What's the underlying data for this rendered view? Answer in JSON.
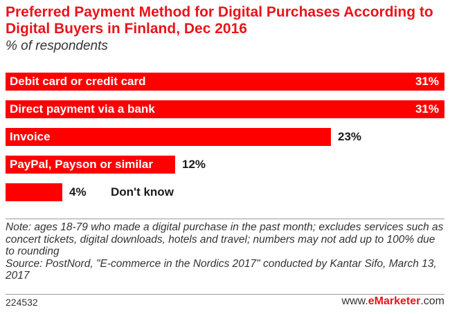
{
  "title": "Preferred Payment Method for Digital Purchases According to Digital Buyers in Finland, Dec 2016",
  "subtitle": "% of respondents",
  "chart_data": {
    "type": "bar",
    "orientation": "horizontal",
    "categories": [
      "Debit card or credit card",
      "Direct payment via a bank",
      "Invoice",
      "PayPal, Payson or similar",
      "Don't know"
    ],
    "values": [
      31,
      31,
      23,
      12,
      4
    ],
    "value_labels": [
      "31%",
      "31%",
      "23%",
      "12%",
      "4%"
    ],
    "unit": "%",
    "xlim": [
      0,
      31
    ],
    "bar_color": "#ff0000",
    "grid": false,
    "legend": "none"
  },
  "note": "Note: ages 18-79 who made a digital purchase in the past month; excludes services such as concert tickets, digital downloads, hotels and travel; numbers may not add up to 100% due to rounding",
  "source": "Source: PostNord, \"E-commerce in the Nordics 2017\" conducted by Kantar Sifo, March 13, 2017",
  "footer": {
    "chart_id": "224532",
    "brand_prefix": "www.",
    "brand_name": "eMarketer",
    "brand_suffix": ".com"
  }
}
